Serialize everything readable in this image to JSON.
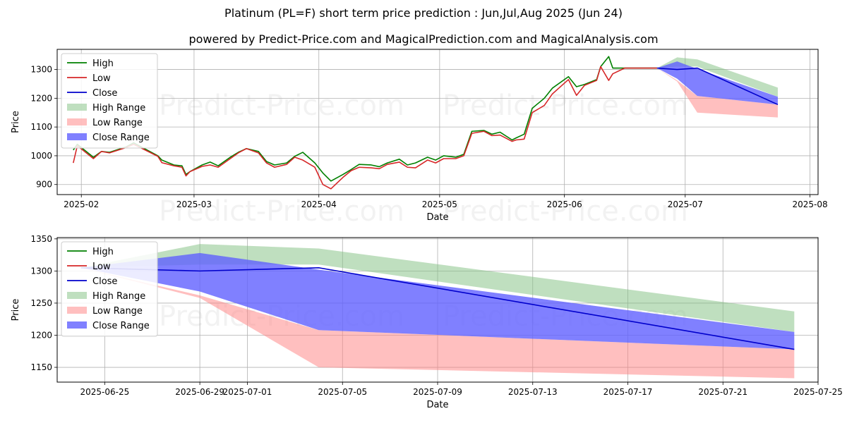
{
  "title": "Platinum (PL=F) short term price prediction : Jun,Jul,Aug 2025 (Jun 24)",
  "subtitle": "powered by Predict-Price.com and MagicalPrediction.com and MagicalAnalysis.com",
  "watermark": "Predict-Price.com",
  "colors": {
    "high": "#008000",
    "low": "#d62728",
    "close": "#0000cc",
    "high_range": "#7fbf7f",
    "low_range": "#ff7f7f",
    "close_range": "#6060ff"
  },
  "chart_data": [
    {
      "type": "line",
      "xlabel": "Date",
      "ylabel": "Price",
      "x_ticks": [
        "2025-02",
        "2025-03",
        "2025-04",
        "2025-05",
        "2025-06",
        "2025-07",
        "2025-08"
      ],
      "y_ticks": [
        900,
        1000,
        1100,
        1200,
        1300
      ],
      "xlim": [
        "2025-01-26",
        "2025-08-03"
      ],
      "ylim": [
        865,
        1370
      ],
      "grid": true,
      "legend_position": "top-left",
      "legend": [
        "High",
        "Low",
        "Close",
        "High Range",
        "Low Range",
        "Close Range"
      ],
      "history": {
        "dates": [
          "2025-01-30",
          "2025-01-31",
          "2025-02-04",
          "2025-02-06",
          "2025-02-08",
          "2025-02-12",
          "2025-02-14",
          "2025-02-20",
          "2025-02-21",
          "2025-02-24",
          "2025-02-26",
          "2025-02-27",
          "2025-02-28",
          "2025-03-03",
          "2025-03-05",
          "2025-03-07",
          "2025-03-10",
          "2025-03-12",
          "2025-03-14",
          "2025-03-17",
          "2025-03-19",
          "2025-03-21",
          "2025-03-24",
          "2025-03-26",
          "2025-03-28",
          "2025-03-31",
          "2025-04-02",
          "2025-04-04",
          "2025-04-07",
          "2025-04-09",
          "2025-04-11",
          "2025-04-14",
          "2025-04-16",
          "2025-04-18",
          "2025-04-21",
          "2025-04-23",
          "2025-04-25",
          "2025-04-28",
          "2025-04-30",
          "2025-05-02",
          "2025-05-05",
          "2025-05-07",
          "2025-05-09",
          "2025-05-12",
          "2025-05-14",
          "2025-05-16",
          "2025-05-19",
          "2025-05-20",
          "2025-05-22",
          "2025-05-24",
          "2025-05-27",
          "2025-05-29",
          "2025-06-02",
          "2025-06-04",
          "2025-06-06",
          "2025-06-09",
          "2025-06-10",
          "2025-06-12",
          "2025-06-13",
          "2025-06-16",
          "2025-06-18",
          "2025-06-20",
          "2025-06-24"
        ],
        "high": [
          1020,
          1040,
          995,
          1015,
          1012,
          1030,
          1045,
          1000,
          985,
          968,
          965,
          935,
          945,
          968,
          978,
          965,
          995,
          1012,
          1025,
          1015,
          980,
          968,
          975,
          998,
          1012,
          975,
          940,
          912,
          935,
          952,
          970,
          968,
          962,
          975,
          988,
          968,
          975,
          995,
          985,
          1000,
          995,
          1005,
          1085,
          1088,
          1075,
          1082,
          1055,
          1062,
          1075,
          1165,
          1200,
          1235,
          1275,
          1240,
          1248,
          1265,
          1310,
          1345,
          1305,
          1305,
          1305,
          1305,
          1305
        ],
        "low": [
          975,
          1035,
          990,
          1015,
          1010,
          1028,
          1040,
          998,
          976,
          965,
          960,
          930,
          945,
          963,
          968,
          960,
          990,
          1010,
          1025,
          1010,
          975,
          960,
          970,
          995,
          985,
          960,
          900,
          885,
          925,
          948,
          960,
          958,
          955,
          970,
          978,
          960,
          958,
          985,
          975,
          990,
          990,
          1000,
          1078,
          1085,
          1070,
          1072,
          1050,
          1055,
          1058,
          1150,
          1175,
          1215,
          1265,
          1210,
          1245,
          1262,
          1310,
          1262,
          1285,
          1305,
          1305,
          1305,
          1305
        ]
      },
      "forecast": {
        "dates": [
          "2025-06-24",
          "2025-06-29",
          "2025-07-04",
          "2025-07-24"
        ],
        "close": [
          1305,
          1300,
          1305,
          1178
        ],
        "high_upper": [
          1305,
          1342,
          1335,
          1237
        ],
        "high_lower": [
          1305,
          1310,
          1310,
          1205
        ],
        "low_upper": [
          1305,
          1262,
          1208,
          1178
        ],
        "low_lower": [
          1305,
          1258,
          1150,
          1133
        ],
        "close_upper": [
          1305,
          1328,
          1302,
          1205
        ],
        "close_lower": [
          1305,
          1268,
          1208,
          1178
        ]
      }
    },
    {
      "type": "line",
      "xlabel": "Date",
      "ylabel": "Price",
      "x_ticks": [
        "2025-06-25",
        "2025-06-29",
        "2025-07-01",
        "2025-07-05",
        "2025-07-09",
        "2025-07-13",
        "2025-07-17",
        "2025-07-21",
        "2025-07-25"
      ],
      "y_ticks": [
        1150,
        1200,
        1250,
        1300,
        1350
      ],
      "xlim": [
        "2025-06-23",
        "2025-07-25"
      ],
      "ylim": [
        1127,
        1352
      ],
      "grid": true,
      "legend_position": "top-left",
      "legend": [
        "High",
        "Low",
        "Close",
        "High Range",
        "Low Range",
        "Close Range"
      ]
    }
  ]
}
